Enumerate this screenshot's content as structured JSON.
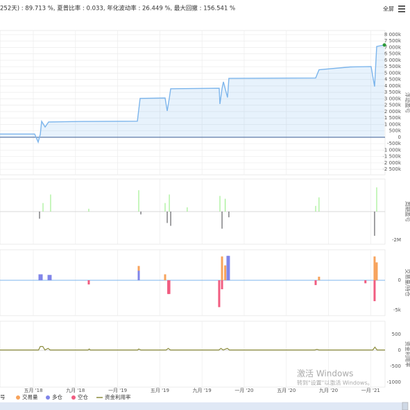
{
  "header": {
    "stats": "252天) : 89.713 %, 夏普比率 : 0.033, 年化波动率 : 26.449 %, 最大回撤 : 156.541 %",
    "fullscreen": "全屏"
  },
  "watermark": {
    "title": "激活 Windows",
    "hint": "转到\"设置\"以激活 Windows。"
  },
  "chart_data": [
    {
      "type": "area",
      "y_title": "浮动盈亏",
      "grid": true,
      "color": "#7cb5ec",
      "x": [
        0.84,
        4.13,
        4.46,
        4.66,
        4.79,
        5.12,
        5.45,
        8.74,
        13.87,
        14.13,
        16.5,
        16.7,
        16.9,
        17.03,
        21.63,
        21.7,
        21.9,
        22.03,
        22.42,
        22.55,
        30.78,
        31.1,
        34.07,
        36.04,
        36.37,
        36.57,
        37.3
      ],
      "values": [
        250000,
        250000,
        -380000,
        230000,
        1240000,
        800000,
        1190000,
        1230000,
        1250000,
        3030000,
        3060000,
        2050000,
        3050000,
        3780000,
        3820000,
        2590000,
        3800000,
        4320000,
        3100000,
        4590000,
        4620000,
        5260000,
        5480000,
        5510000,
        3950000,
        7080000,
        7190000
      ],
      "ylim": [
        -2930000,
        8320000
      ],
      "yticks": [
        {
          "value": 8000000,
          "label": "8 000k"
        },
        {
          "value": 7500000,
          "label": "7 500k"
        },
        {
          "value": 7000000,
          "label": "7 000k"
        },
        {
          "value": 6500000,
          "label": "6 500k"
        },
        {
          "value": 6000000,
          "label": "6 000k"
        },
        {
          "value": 5500000,
          "label": "5 500k"
        },
        {
          "value": 5000000,
          "label": "5 000k"
        },
        {
          "value": 4500000,
          "label": "4 500k"
        },
        {
          "value": 4000000,
          "label": "4 000k"
        },
        {
          "value": 3500000,
          "label": "3 500k"
        },
        {
          "value": 3000000,
          "label": "3 000k"
        },
        {
          "value": 2500000,
          "label": "2 500k"
        },
        {
          "value": 2000000,
          "label": "2 000k"
        },
        {
          "value": 1500000,
          "label": "1 500k"
        },
        {
          "value": 1000000,
          "label": "1 000k"
        },
        {
          "value": 500000,
          "label": "500k"
        },
        0,
        {
          "value": -500000,
          "label": "-500k"
        },
        {
          "value": -1000000,
          "label": "-1 000k"
        },
        {
          "value": -1500000,
          "label": "-1 500k"
        },
        {
          "value": -2000000,
          "label": "-2 000k"
        },
        {
          "value": -2500000,
          "label": "-2 500k"
        }
      ]
    },
    {
      "type": "bar",
      "y_title": "周期盈亏",
      "ylim": [
        -2290000,
        2290000
      ],
      "yticks": [
        {
          "value": -2000000,
          "label": "-2M"
        }
      ],
      "series": [
        {
          "name": "号",
          "color": "#90ed7d",
          "negative_color": "#434348",
          "x": [
            4.59,
            4.92,
            5.64,
            9.26,
            14.0,
            14.2,
            16.5,
            16.7,
            16.9,
            17.03,
            18.6,
            21.7,
            21.9,
            22.2,
            22.55,
            30.78,
            31.1,
            36.37,
            36.57
          ],
          "values": [
            -500000,
            600000,
            1200000,
            200000,
            1500000,
            -200000,
            600000,
            -800000,
            1200000,
            -1000000,
            300000,
            1100000,
            -1200000,
            900000,
            -400000,
            400000,
            1000000,
            -1700000,
            1700000
          ]
        }
      ]
    },
    {
      "type": "bar",
      "y_title": "交易量/持仓",
      "ylim": [
        -5930,
        5120
      ],
      "yticks": [
        0,
        {
          "value": -5000,
          "label": "-5k"
        }
      ],
      "series": [
        {
          "name": "交易量",
          "color": "#f7a35c",
          "x": [
            14.0,
            16.5,
            21.9,
            22.2,
            31.1,
            36.37,
            36.57
          ],
          "values": [
            2400,
            1000,
            4000,
            2500,
            600,
            4000,
            3000
          ]
        },
        {
          "name": "多仓",
          "color": "#8085e9",
          "x": [
            4.59,
            4.79,
            5.45,
            5.64,
            14.0,
            22.42,
            22.55
          ],
          "values": [
            1000,
            1000,
            900,
            900,
            1600,
            4100,
            4100
          ]
        },
        {
          "name": "空仓",
          "color": "#f15c80",
          "x": [
            9.26,
            16.8,
            16.9,
            21.63,
            21.9,
            30.78,
            35.5,
            36.37
          ],
          "values": [
            -700,
            -2300,
            -2300,
            -4500,
            -1500,
            -800,
            -500,
            -3500
          ]
        }
      ]
    },
    {
      "type": "line",
      "y_title": "资金利用率",
      "ylim": [
        -1150,
        910
      ],
      "yticks": [
        500,
        0,
        -500,
        -1000
      ],
      "xlim": [
        0.84,
        37.36
      ],
      "xticks": [
        {
          "value": 4,
          "label": "五月 '18"
        },
        {
          "value": 8,
          "label": "九月 '18"
        },
        {
          "value": 12,
          "label": "一月 '19"
        },
        {
          "value": 16,
          "label": "五月 '19"
        },
        {
          "value": 20,
          "label": "九月 '19"
        },
        {
          "value": 24,
          "label": "一月 '20"
        },
        {
          "value": 28,
          "label": "五月 '20"
        },
        {
          "value": 32,
          "label": "九月 '20"
        },
        {
          "value": 36,
          "label": "一月 '21"
        }
      ],
      "series": [
        {
          "name": "资金利用率",
          "color": "#8b8b3a",
          "x": [
            0.84,
            4.5,
            4.66,
            4.9,
            5.1,
            5.4,
            5.6,
            9.2,
            9.3,
            9.4,
            13.9,
            14.0,
            14.2,
            16.6,
            16.8,
            17.0,
            21.6,
            21.8,
            22.0,
            22.4,
            22.6,
            30.7,
            30.9,
            31.1,
            36.2,
            36.4,
            36.6,
            37.36
          ],
          "values": [
            10,
            10,
            120,
            120,
            10,
            60,
            10,
            10,
            40,
            10,
            10,
            40,
            10,
            10,
            60,
            10,
            10,
            60,
            10,
            60,
            10,
            10,
            30,
            10,
            10,
            100,
            10,
            10
          ]
        }
      ]
    }
  ]
}
